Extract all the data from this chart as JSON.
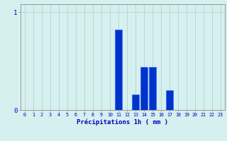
{
  "hours": [
    0,
    1,
    2,
    3,
    4,
    5,
    6,
    7,
    8,
    9,
    10,
    11,
    12,
    13,
    14,
    15,
    16,
    17,
    18,
    19,
    20,
    21,
    22,
    23
  ],
  "values": [
    0,
    0,
    0,
    0,
    0,
    0,
    0,
    0,
    0,
    0,
    0,
    0.82,
    0,
    0.16,
    0.44,
    0.44,
    0,
    0.2,
    0,
    0,
    0,
    0,
    0,
    0
  ],
  "bar_color": "#0033cc",
  "bar_edge_color": "#3366ff",
  "background_color": "#d6efef",
  "grid_color": "#b8d8d8",
  "xlabel": "Précipitations 1h ( mm )",
  "xlabel_color": "#0000bb",
  "tick_color": "#0000bb",
  "ytick_labels": [
    "0",
    "1"
  ],
  "ytick_values": [
    0,
    1
  ],
  "ylim": [
    0,
    1.08
  ],
  "xlim": [
    -0.5,
    23.5
  ]
}
